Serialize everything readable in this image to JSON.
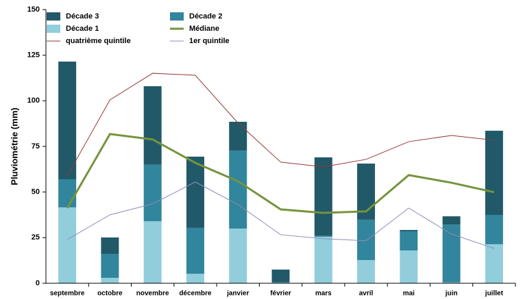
{
  "chart_data": {
    "type": "stacked-bar-line",
    "y_label": "Pluviométrie (mm)",
    "categories": [
      "septembre",
      "octobre",
      "novembre",
      "décembre",
      "janvier",
      "février",
      "mars",
      "avril",
      "mai",
      "juin",
      "juillet"
    ],
    "series": [
      {
        "name": "Décade 1",
        "kind": "bar",
        "color": "#92cddc",
        "values": [
          41.6,
          3,
          34,
          5.2,
          30,
          0.3,
          25.5,
          12.7,
          18,
          0.5,
          21.4
        ]
      },
      {
        "name": "Décade 2",
        "kind": "bar",
        "color": "#31859c",
        "values": [
          15.4,
          13.1,
          31,
          25.2,
          42.7,
          0.3,
          0.5,
          22.2,
          10.5,
          31.7,
          16.1
        ]
      },
      {
        "name": "Décade 3",
        "kind": "bar",
        "color": "#215968",
        "values": [
          64.5,
          9,
          43,
          39,
          15.8,
          6.9,
          43,
          30.7,
          0.7,
          4.5,
          46.1
        ]
      },
      {
        "name": "Médiane",
        "kind": "line",
        "color": "#77933c",
        "width": 3,
        "values": [
          41.2,
          81.8,
          78.8,
          66,
          55.9,
          40.5,
          38.6,
          39.4,
          59.3,
          55.1,
          49.9
        ]
      },
      {
        "name": "quatrième quintile",
        "kind": "line",
        "color": "#953735",
        "width": 1,
        "values": [
          58.9,
          100.5,
          115.1,
          114,
          87.8,
          66.4,
          63.8,
          67.9,
          77.6,
          81,
          78.4
        ]
      },
      {
        "name": "1er quintile",
        "kind": "line",
        "color": "#8e8cb5",
        "width": 1,
        "values": [
          24,
          37.5,
          43.5,
          55.5,
          43.1,
          26.6,
          24.4,
          23.3,
          41.2,
          27,
          19.1
        ]
      }
    ],
    "ylim": [
      0,
      150
    ],
    "yticks": [
      0,
      25,
      50,
      75,
      100,
      125,
      150
    ],
    "grid": false
  }
}
